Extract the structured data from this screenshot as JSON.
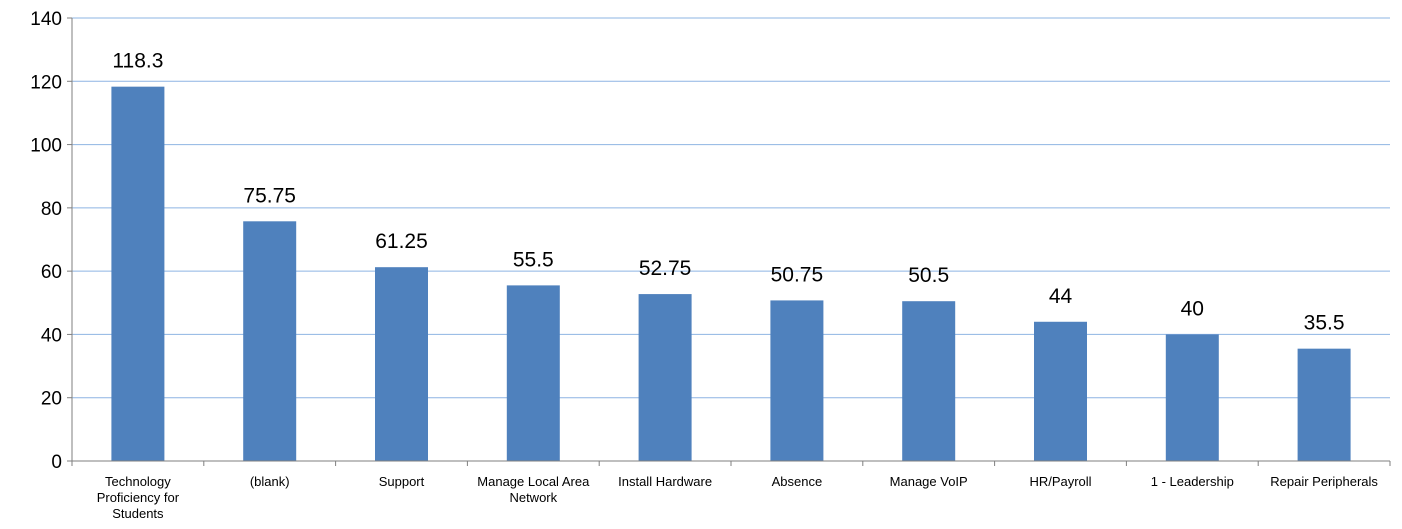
{
  "chart_data": {
    "type": "bar",
    "categories": [
      "Technology Proficiency for Students",
      "(blank)",
      "Support",
      "Manage Local Area Network",
      "Install Hardware",
      "Absence",
      "Manage VoIP",
      "HR/Payroll",
      "1 - Leadership",
      "Repair Peripherals"
    ],
    "category_label_lines": [
      [
        "Technology",
        "Proficiency for",
        "Students"
      ],
      [
        "(blank)"
      ],
      [
        "Support"
      ],
      [
        "Manage Local Area",
        "Network"
      ],
      [
        "Install Hardware"
      ],
      [
        "Absence"
      ],
      [
        "Manage VoIP"
      ],
      [
        "HR/Payroll"
      ],
      [
        "1 - Leadership"
      ],
      [
        "Repair Peripherals"
      ]
    ],
    "values": [
      118.3,
      75.75,
      61.25,
      55.5,
      52.75,
      50.75,
      50.5,
      44,
      40,
      35.5
    ],
    "data_labels": [
      "118.3",
      "75.75",
      "61.25",
      "55.5",
      "52.75",
      "50.75",
      "50.5",
      "44",
      "40",
      "35.5"
    ],
    "ylim": [
      0,
      140
    ],
    "yticks": [
      0,
      20,
      40,
      60,
      80,
      100,
      120,
      140
    ],
    "grid": true,
    "bar_color": "#4F81BD",
    "grid_color": "#8EB4E3",
    "axis_color": "#7F7F7F",
    "title": "",
    "xlabel": "",
    "ylabel": ""
  }
}
